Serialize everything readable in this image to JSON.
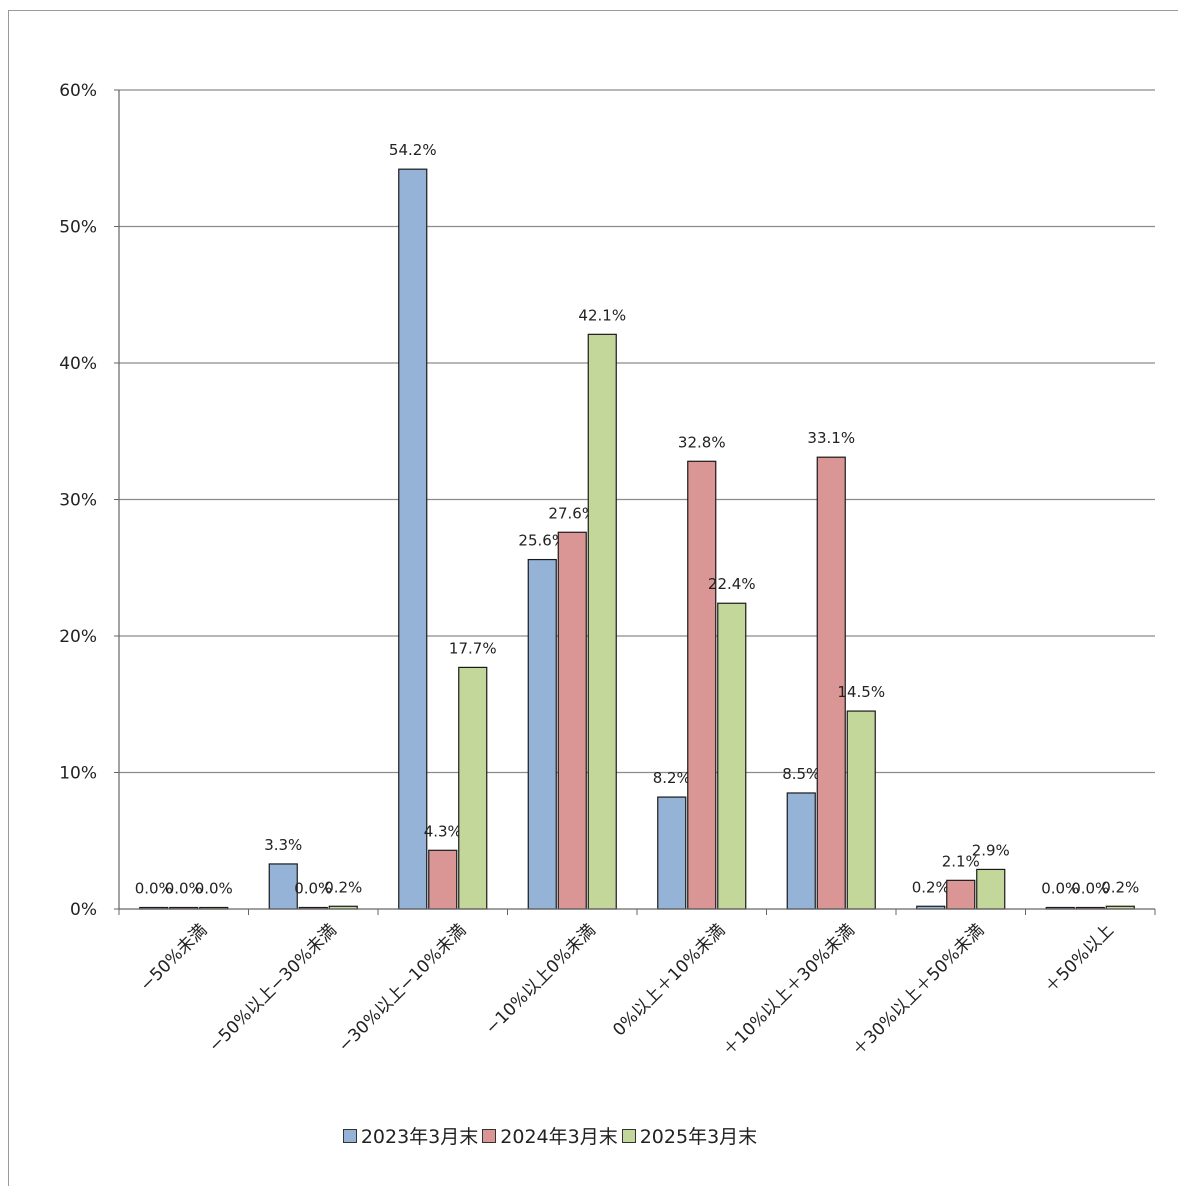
{
  "chart_data": {
    "type": "bar",
    "categories": [
      "−50%未満",
      "−50%以上−30%未満",
      "−30%以上−10%未満",
      "−10%以上0%未満",
      "0%以上＋10%未満",
      "＋10%以上＋30%未満",
      "＋30%以上＋50%未満",
      "＋50%以上"
    ],
    "series": [
      {
        "name": "2023年3月末",
        "color": "#95b3d7",
        "values": [
          0.0,
          3.3,
          54.2,
          25.6,
          8.2,
          8.5,
          0.2,
          0.0
        ],
        "labels": [
          "0.0%",
          "3.3%",
          "54.2%",
          "25.6%",
          "8.2%",
          "8.5%",
          "0.2%",
          "0.0%"
        ]
      },
      {
        "name": "2024年3月末",
        "color": "#da9694",
        "values": [
          0.0,
          0.0,
          4.3,
          27.6,
          32.8,
          33.1,
          2.1,
          0.0
        ],
        "labels": [
          "0.0%",
          "0.0%",
          "4.3%",
          "27.6%",
          "32.8%",
          "33.1%",
          "2.1%",
          "0.0%"
        ]
      },
      {
        "name": "2025年3月末",
        "color": "#c4d79b",
        "values": [
          0.0,
          0.2,
          17.7,
          42.1,
          22.4,
          14.5,
          2.9,
          0.2
        ],
        "labels": [
          "0.0%",
          "0.2%",
          "17.7%",
          "42.1%",
          "22.4%",
          "14.5%",
          "2.9%",
          "0.2%"
        ]
      }
    ],
    "yticks": [
      "0%",
      "10%",
      "20%",
      "30%",
      "40%",
      "50%",
      "60%"
    ],
    "ylim": [
      0,
      60
    ],
    "grid": true,
    "legend_position": "bottom"
  }
}
